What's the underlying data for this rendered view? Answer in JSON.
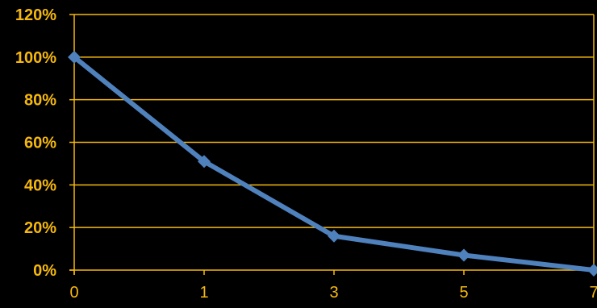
{
  "chart_data": {
    "type": "line",
    "x_categories": [
      "0",
      "1",
      "3",
      "5",
      "7"
    ],
    "series": [
      {
        "values": [
          100,
          51,
          16,
          7,
          0
        ]
      }
    ],
    "ylim": [
      0,
      120
    ],
    "y_ticks": [
      {
        "value": 0,
        "label": "0%"
      },
      {
        "value": 20,
        "label": "20%"
      },
      {
        "value": 40,
        "label": "40%"
      },
      {
        "value": 60,
        "label": "60%"
      },
      {
        "value": 80,
        "label": "80%"
      },
      {
        "value": 100,
        "label": "100%"
      },
      {
        "value": 120,
        "label": "120%"
      }
    ],
    "grid": true,
    "legend": "none",
    "marker": "diamond",
    "colors": {
      "background": "#000000",
      "axis": "#F5B80E",
      "gridline": "#F5B80E",
      "line": "#4F81BD",
      "y_tick_text": "#F5B80E",
      "x_tick_text": "#F5B80E"
    }
  }
}
